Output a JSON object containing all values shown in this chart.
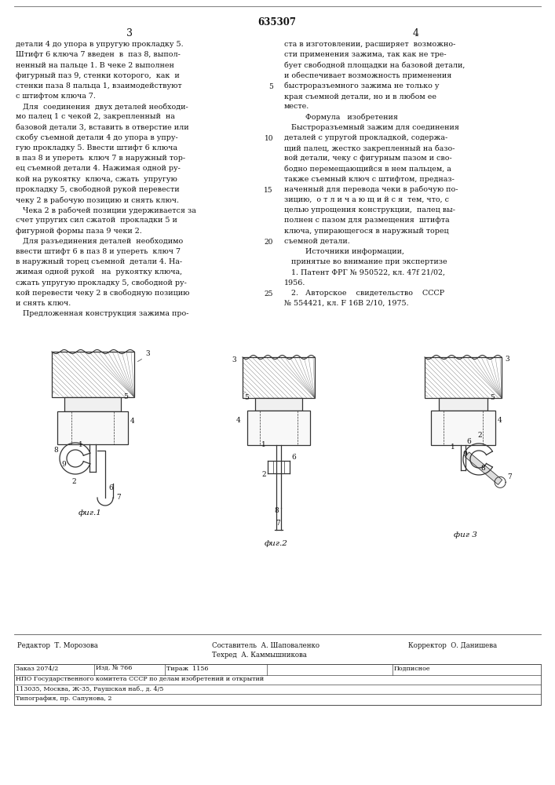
{
  "background_color": "#ffffff",
  "text_color": "#111111",
  "patent_number": "635307",
  "page_numbers": [
    "3",
    "4"
  ],
  "col1_text": [
    "детали 4 до упора в упругую прокладку 5.",
    "Штифт 6 ключа 7 введен  в  паз 8, выпол-",
    "ненный на пальце 1. В чеке 2 выполнен",
    "фигурный паз 9, стенки которого,  как  и",
    "стенки паза 8 пальца 1, взаимодействуют",
    "с штифтом ключа 7.",
    "   Для  соединения  двух деталей необходи-",
    "мо палец 1 с чекой 2, закрепленный  на",
    "базовой детали 3, вставить в отверстие или",
    "скобу съемной детали 4 до упора в упру-",
    "гую прокладку 5. Ввести штифт 6 ключа",
    "в паз 8 и упереть  ключ 7 в наружный тор-",
    "ец съемной детали 4. Нажимая одной ру-",
    "кой на рукоятку  ключа, сжать  упругую",
    "прокладку 5, свободной рукой перевести",
    "чеку 2 в рабочую позицию и снять ключ.",
    "   Чека 2 в рабочей позиции удерживается за",
    "счет упругих сил сжатой  прокладки 5 и",
    "фигурной формы паза 9 чеки 2.",
    "   Для разъединения деталей  необходимо",
    "ввести штифт 6 в паз 8 и упереть  ключ 7",
    "в наружный торец съемной  детали 4. На-",
    "жимая одной рукой   на  рукоятку ключа,",
    "сжать упругую прокладку 5, свободной ру-",
    "кой перевести чеку 2 в свободную позицию",
    "и снять ключ.",
    "   Предложенная конструкция зажима про-"
  ],
  "col2_text": [
    "ста в изготовлении, расширяет  возможно-",
    "сти применения зажима, так как не тре-",
    "бует свободной площадки на базовой детали,",
    "и обеспечивает возможность применения",
    "быстроразъемного зажима не только у",
    "края съемной детали, но и в любом ее",
    "месте.",
    "         Формула   изобретения",
    "   Быстроразъемный зажим для соединения",
    "деталей с упругой прокладкой, содержа-",
    "щий палец, жестко закрепленный на базо-",
    "вой детали, чеку с фигурным пазом и сво-",
    "бодно перемещающийся в нем пальцем, а",
    "также съемный ключ с штифтом, предназ-",
    "наченный для перевода чеки в рабочую по-",
    "зицию,  о т л и ч а ю щ и й с я  тем, что, с",
    "целью упрощения конструкции,  палец вы-",
    "полнен с пазом для размещения  штифта",
    "ключа, упирающегося в наружный торец",
    "съемной детали.",
    "         Источники информации,",
    "   принятые во внимание при экспертизе",
    "   1. Патент ФРГ № 950522, кл. 47f 21/02,",
    "1956.",
    "   2.   Авторское    свидетельство    СССР",
    "№ 554421, кл. F 16B 2/10, 1975."
  ],
  "line_numbers_col2": [
    5,
    10,
    15,
    20,
    25
  ],
  "fig_labels": [
    "фиг.1",
    "фиг.2",
    "фиг 3"
  ]
}
